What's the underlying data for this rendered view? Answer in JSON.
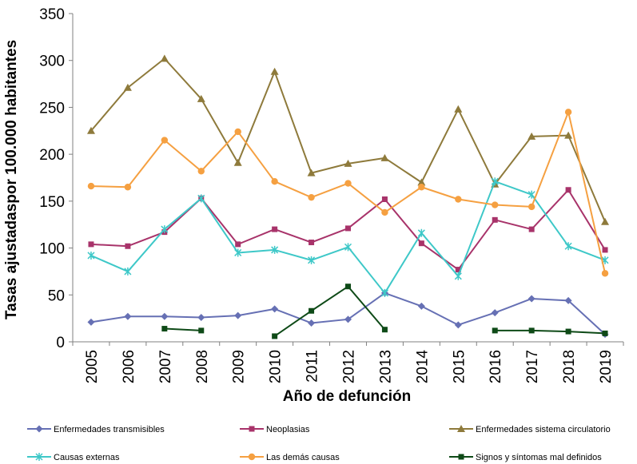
{
  "chart_data": {
    "type": "line",
    "categories": [
      "2005",
      "2006",
      "2007",
      "2008",
      "2009",
      "2010",
      "2011",
      "2012",
      "2013",
      "2014",
      "2015",
      "2016",
      "2017",
      "2018",
      "2019"
    ],
    "xlabel": "Año de defunción",
    "ylabel": "Tasas ajustadaspor 100.000 habitantes",
    "ylim": [
      0,
      350
    ],
    "yticks": [
      0,
      50,
      100,
      150,
      200,
      250,
      300,
      350
    ],
    "grid": false,
    "legend_position": "bottom",
    "series": [
      {
        "name": "Enfermedades transmisibles",
        "color": "#6670b4",
        "marker": "diamond",
        "values": [
          21,
          27,
          27,
          26,
          28,
          35,
          20,
          24,
          52,
          38,
          18,
          31,
          46,
          44,
          8
        ]
      },
      {
        "name": "Neoplasias",
        "color": "#a8336a",
        "marker": "square",
        "values": [
          104,
          102,
          117,
          153,
          104,
          120,
          106,
          121,
          152,
          105,
          77,
          130,
          120,
          162,
          98
        ]
      },
      {
        "name": "Enfermedades sistema circulatorio",
        "color": "#8e7a3b",
        "marker": "triangle",
        "values": [
          225,
          271,
          302,
          259,
          191,
          288,
          180,
          190,
          196,
          170,
          248,
          168,
          219,
          220,
          128
        ]
      },
      {
        "name": "Causas externas",
        "color": "#3ec8c8",
        "marker": "asterisk",
        "values": [
          92,
          75,
          120,
          153,
          95,
          98,
          87,
          101,
          52,
          116,
          70,
          171,
          157,
          102,
          87
        ]
      },
      {
        "name": "Las demás causas",
        "color": "#f5a041",
        "marker": "circle",
        "values": [
          166,
          165,
          215,
          182,
          224,
          171,
          154,
          169,
          138,
          165,
          152,
          146,
          144,
          245,
          73
        ]
      },
      {
        "name": "Signos y síntomas mal definidos",
        "color": "#0e4a17",
        "marker": "square",
        "values": [
          null,
          null,
          14,
          12,
          null,
          6,
          33,
          59,
          13,
          null,
          null,
          12,
          12,
          11,
          9
        ]
      }
    ]
  }
}
